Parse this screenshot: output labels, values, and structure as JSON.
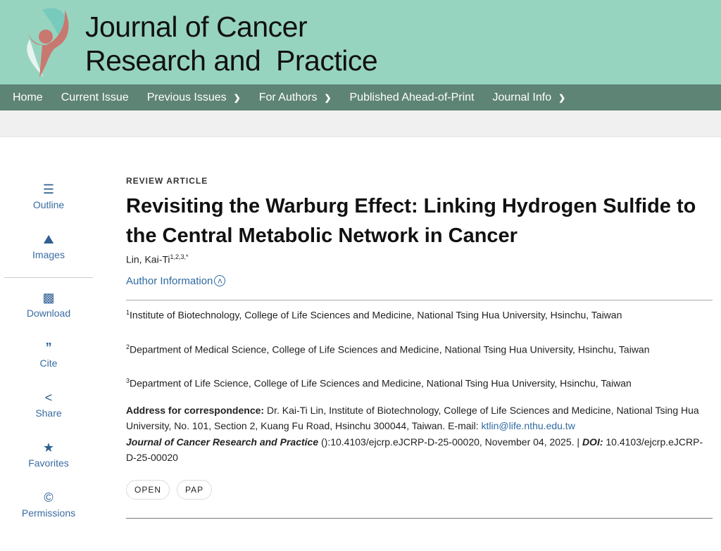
{
  "header": {
    "journal_line1": "Journal of Cancer",
    "journal_line2": "Research and  Practice"
  },
  "nav": [
    {
      "label": "Home"
    },
    {
      "label": "Current Issue"
    },
    {
      "label": "Previous Issues",
      "dropdown": true
    },
    {
      "label": "For Authors",
      "dropdown": true
    },
    {
      "label": "Published Ahead-of-Print"
    },
    {
      "label": "Journal Info",
      "dropdown": true
    }
  ],
  "sidebar": [
    {
      "label": "Outline",
      "icon": "list-icon"
    },
    {
      "label": "Images",
      "icon": "image-icon"
    },
    {
      "label": "Download",
      "icon": "pdf-icon"
    },
    {
      "label": "Cite",
      "icon": "quote-icon"
    },
    {
      "label": "Share",
      "icon": "share-icon"
    },
    {
      "label": "Favorites",
      "icon": "star-icon"
    },
    {
      "label": "Permissions",
      "icon": "copyright-icon"
    }
  ],
  "article": {
    "type": "REVIEW ARTICLE",
    "title": "Revisiting the Warburg Effect: Linking Hydrogen Sulfide to the Central Metabolic Network in Cancer",
    "author": "Lin, Kai-Ti",
    "author_sup": "1,2,3,*",
    "author_info_label": "Author Information",
    "affiliations": [
      {
        "num": "1",
        "text": "Institute of Biotechnology, College of Life Sciences and Medicine, National Tsing Hua University, Hsinchu, Taiwan"
      },
      {
        "num": "2",
        "text": "Department of Medical Science, College of Life Sciences and Medicine, National Tsing Hua University, Hsinchu, Taiwan"
      },
      {
        "num": "3",
        "text": "Department of Life Science, College of Life Sciences and Medicine, National Tsing Hua University, Hsinchu, Taiwan"
      }
    ],
    "correspondence_label": "Address for correspondence:",
    "correspondence": " Dr. Kai-Ti Lin, Institute of Biotechnology, College of Life Sciences and Medicine, National Tsing Hua University, No. 101, Section 2, Kuang Fu Road, Hsinchu 300044, Taiwan. E-mail: ",
    "email": "ktlin@life.nthu.edu.tw",
    "citation_journal": "Journal of Cancer Research and Practice",
    "citation_text": " ():10.4103/ejcrp.eJCRP-D-25-00020, November 04, 2025. | ",
    "doi_label": "DOI:",
    "doi": " 10.4103/ejcrp.eJCRP-D-25-00020",
    "tags": [
      "OPEN",
      "PAP"
    ]
  }
}
